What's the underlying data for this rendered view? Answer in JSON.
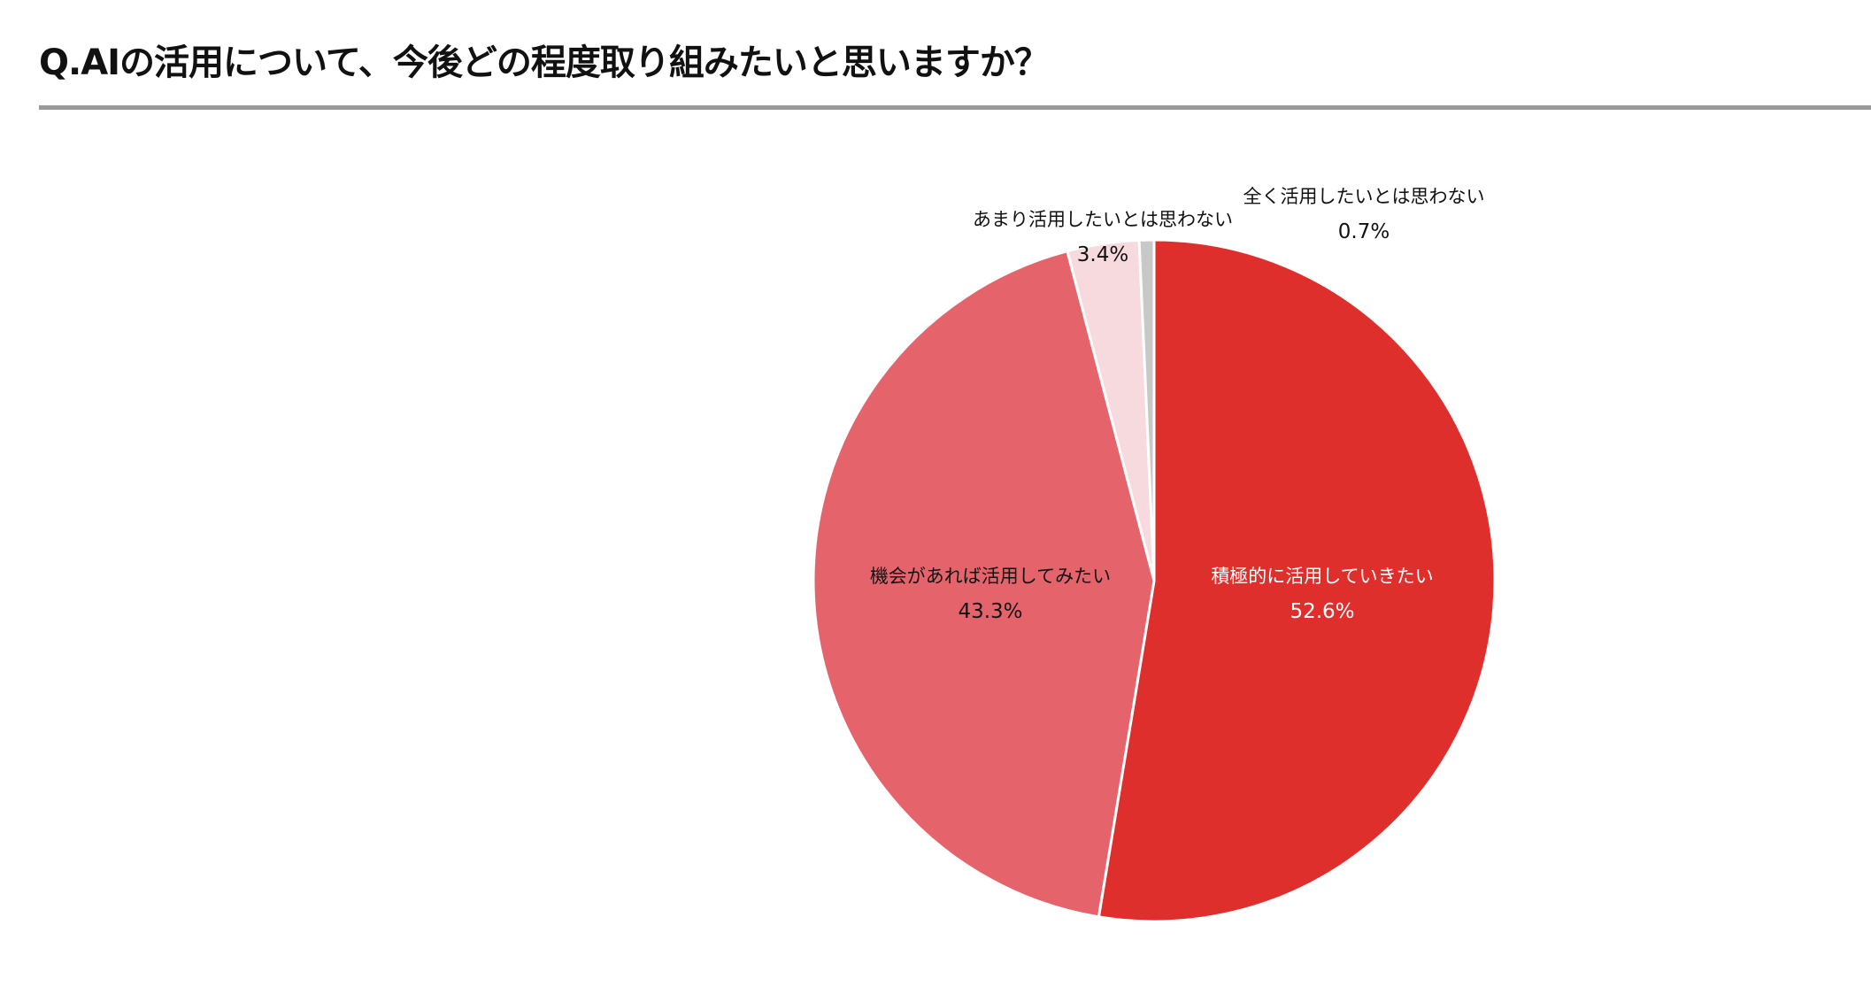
{
  "chart_data": {
    "type": "pie",
    "title": "Q.AIの活用について、今後どの程度取り組みたいと思いますか？",
    "slices": [
      {
        "label": "積極的に活用していきたい",
        "value": 52.6,
        "display": "52.6%",
        "color": "#DE2F2D",
        "label_color": "#ffffff"
      },
      {
        "label": "機会があれば活用してみたい",
        "value": 43.3,
        "display": "43.3%",
        "color": "#E5646C",
        "label_color": "#111111"
      },
      {
        "label": "あまり活用したいとは思わない",
        "value": 3.4,
        "display": "3.4%",
        "color": "#F7DADD",
        "label_color": "#111111"
      },
      {
        "label": "全く活用したいとは思わない",
        "value": 0.7,
        "display": "0.7%",
        "color": "#C8C8C8",
        "label_color": "#111111"
      }
    ],
    "start_angle": "12 o'clock",
    "direction": "clockwise"
  }
}
